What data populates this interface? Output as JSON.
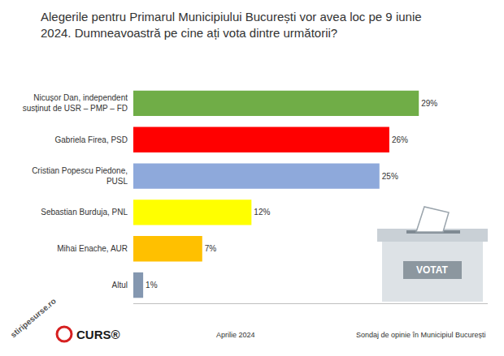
{
  "chart_data": {
    "type": "bar",
    "orientation": "horizontal",
    "title": "Alegerile pentru Primarul Municipiului București vor avea loc pe 9 iunie 2024. Dumneavoastră pe cine ați vota dintre următorii?",
    "categories": [
      "Nicușor Dan, independent susținut de USR – PMP – FD",
      "Gabriela Firea, PSD",
      "Cristian Popescu Piedone, PUSL",
      "Sebastian Burduja, PNL",
      "Mihai Enache, AUR",
      "Altul"
    ],
    "values": [
      29,
      26,
      25,
      12,
      7,
      1
    ],
    "value_labels": [
      "29%",
      "26%",
      "25%",
      "12%",
      "7%",
      "1%"
    ],
    "colors": [
      "#70ad47",
      "#ff0000",
      "#8ea9db",
      "#ffff00",
      "#ffc000",
      "#8497b0"
    ],
    "xlim": [
      0,
      36
    ],
    "grid": false,
    "data_labels": true,
    "tick_labels": "y",
    "annotations": [
      "Aprilie 2024",
      "Sondaj de opinie în Municipiul București",
      "CURS®",
      "VOTAT",
      "stiripesurse.ro"
    ]
  }
}
